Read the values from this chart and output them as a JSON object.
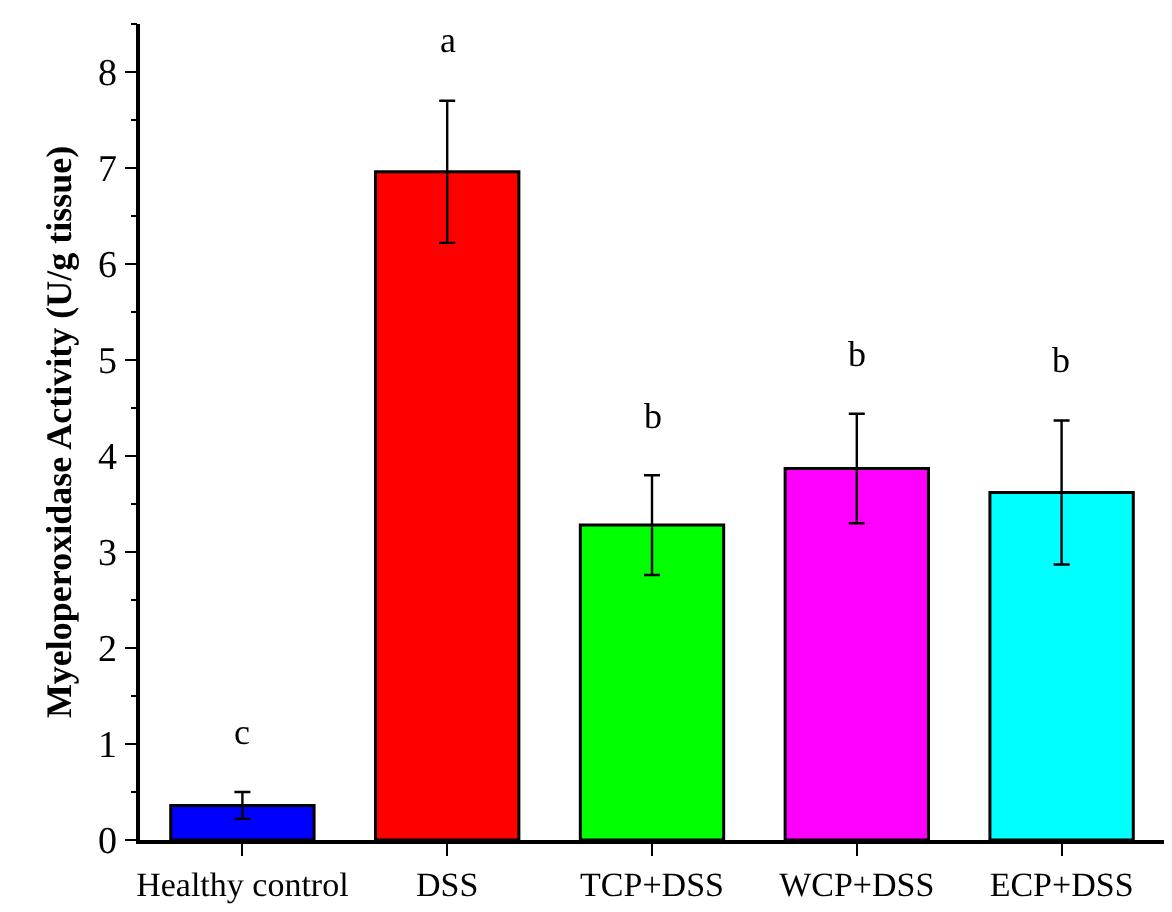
{
  "chart_data": {
    "type": "bar",
    "ylabel": "Myeloperoxidase Activity (U/g tissue)",
    "categories": [
      "Healthy control",
      "DSS",
      "TCP+DSS",
      "WCP+DSS",
      "ECP+DSS"
    ],
    "values": [
      0.36,
      6.96,
      3.28,
      3.87,
      3.62
    ],
    "colors": [
      "#0000ff",
      "#ff0000",
      "#00ff00",
      "#ff00ff",
      "#00ffff"
    ],
    "errors": [
      0.14,
      0.74,
      0.52,
      0.57,
      0.75
    ],
    "ylim": [
      0,
      8.5
    ],
    "yticks": [
      0,
      1,
      2,
      3,
      4,
      5,
      6,
      7,
      8
    ],
    "annotations": [
      "c",
      "a",
      "b",
      "b",
      "b"
    ]
  }
}
